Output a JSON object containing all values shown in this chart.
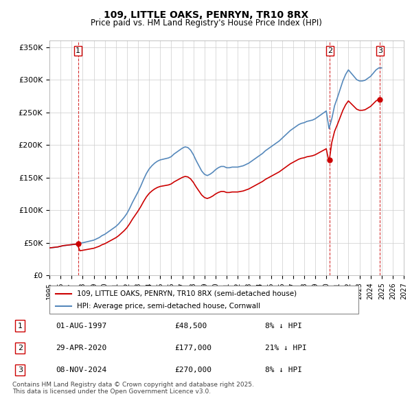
{
  "title": "109, LITTLE OAKS, PENRYN, TR10 8RX",
  "subtitle": "Price paid vs. HM Land Registry's House Price Index (HPI)",
  "ylabel_ticks": [
    "£0",
    "£50K",
    "£100K",
    "£150K",
    "£200K",
    "£250K",
    "£300K",
    "£350K"
  ],
  "ytick_values": [
    0,
    50000,
    100000,
    150000,
    200000,
    250000,
    300000,
    350000
  ],
  "ylim": [
    0,
    360000
  ],
  "xlim_start": 1995,
  "xlim_end": 2027,
  "xtick_years": [
    1995,
    1996,
    1997,
    1998,
    1999,
    2000,
    2001,
    2002,
    2003,
    2004,
    2005,
    2006,
    2007,
    2008,
    2009,
    2010,
    2011,
    2012,
    2013,
    2014,
    2015,
    2016,
    2017,
    2018,
    2019,
    2020,
    2021,
    2022,
    2023,
    2024,
    2025,
    2026,
    2027
  ],
  "sale_color": "#cc0000",
  "hpi_color": "#6699cc",
  "hpi_line_color": "#5588bb",
  "dashed_color": "#cc0000",
  "purchases": [
    {
      "num": 1,
      "date_label": "01-AUG-1997",
      "year": 1997.58,
      "price": 48500,
      "pct": "8%",
      "direction": "↓"
    },
    {
      "num": 2,
      "date_label": "29-APR-2020",
      "year": 2020.33,
      "price": 177000,
      "pct": "21%",
      "direction": "↓"
    },
    {
      "num": 3,
      "date_label": "08-NOV-2024",
      "year": 2024.85,
      "price": 270000,
      "pct": "8%",
      "direction": "↓"
    }
  ],
  "legend_sale_label": "109, LITTLE OAKS, PENRYN, TR10 8RX (semi-detached house)",
  "legend_hpi_label": "HPI: Average price, semi-detached house, Cornwall",
  "footer": "Contains HM Land Registry data © Crown copyright and database right 2025.\nThis data is licensed under the Open Government Licence v3.0.",
  "bg_color": "#ffffff",
  "grid_color": "#cccccc",
  "hpi_data": {
    "years": [
      1995.0,
      1995.25,
      1995.5,
      1995.75,
      1996.0,
      1996.25,
      1996.5,
      1996.75,
      1997.0,
      1997.25,
      1997.5,
      1997.75,
      1998.0,
      1998.25,
      1998.5,
      1998.75,
      1999.0,
      1999.25,
      1999.5,
      1999.75,
      2000.0,
      2000.25,
      2000.5,
      2000.75,
      2001.0,
      2001.25,
      2001.5,
      2001.75,
      2002.0,
      2002.25,
      2002.5,
      2002.75,
      2003.0,
      2003.25,
      2003.5,
      2003.75,
      2004.0,
      2004.25,
      2004.5,
      2004.75,
      2005.0,
      2005.25,
      2005.5,
      2005.75,
      2006.0,
      2006.25,
      2006.5,
      2006.75,
      2007.0,
      2007.25,
      2007.5,
      2007.75,
      2008.0,
      2008.25,
      2008.5,
      2008.75,
      2009.0,
      2009.25,
      2009.5,
      2009.75,
      2010.0,
      2010.25,
      2010.5,
      2010.75,
      2011.0,
      2011.25,
      2011.5,
      2011.75,
      2012.0,
      2012.25,
      2012.5,
      2012.75,
      2013.0,
      2013.25,
      2013.5,
      2013.75,
      2014.0,
      2014.25,
      2014.5,
      2014.75,
      2015.0,
      2015.25,
      2015.5,
      2015.75,
      2016.0,
      2016.25,
      2016.5,
      2016.75,
      2017.0,
      2017.25,
      2017.5,
      2017.75,
      2018.0,
      2018.25,
      2018.5,
      2018.75,
      2019.0,
      2019.25,
      2019.5,
      2019.75,
      2020.0,
      2020.25,
      2020.5,
      2020.75,
      2021.0,
      2021.25,
      2021.5,
      2021.75,
      2022.0,
      2022.25,
      2022.5,
      2022.75,
      2023.0,
      2023.25,
      2023.5,
      2023.75,
      2024.0,
      2024.25,
      2024.5,
      2024.75,
      2025.0
    ],
    "values": [
      42000,
      42500,
      43000,
      43500,
      44500,
      45500,
      46000,
      46500,
      47000,
      47500,
      48000,
      49000,
      50000,
      51000,
      52000,
      53000,
      54000,
      56000,
      58000,
      61000,
      63000,
      66000,
      69000,
      72000,
      75000,
      79000,
      84000,
      89000,
      95000,
      103000,
      112000,
      120000,
      128000,
      137000,
      147000,
      156000,
      163000,
      168000,
      172000,
      175000,
      177000,
      178000,
      179000,
      180000,
      182000,
      186000,
      189000,
      192000,
      195000,
      197000,
      196000,
      192000,
      185000,
      176000,
      168000,
      160000,
      155000,
      153000,
      155000,
      158000,
      162000,
      165000,
      167000,
      167000,
      165000,
      165000,
      166000,
      166000,
      166000,
      167000,
      168000,
      170000,
      172000,
      175000,
      178000,
      181000,
      184000,
      187000,
      191000,
      194000,
      197000,
      200000,
      203000,
      206000,
      210000,
      214000,
      218000,
      222000,
      225000,
      228000,
      231000,
      233000,
      234000,
      236000,
      237000,
      238000,
      240000,
      243000,
      246000,
      249000,
      252000,
      225000,
      240000,
      260000,
      272000,
      285000,
      298000,
      308000,
      315000,
      310000,
      305000,
      300000,
      298000,
      298000,
      299000,
      302000,
      305000,
      310000,
      315000,
      318000,
      318000
    ]
  },
  "sale_hpi_data": {
    "years": [
      1997.58,
      2020.33,
      2024.85
    ],
    "values": [
      52800,
      224000,
      292000
    ]
  }
}
